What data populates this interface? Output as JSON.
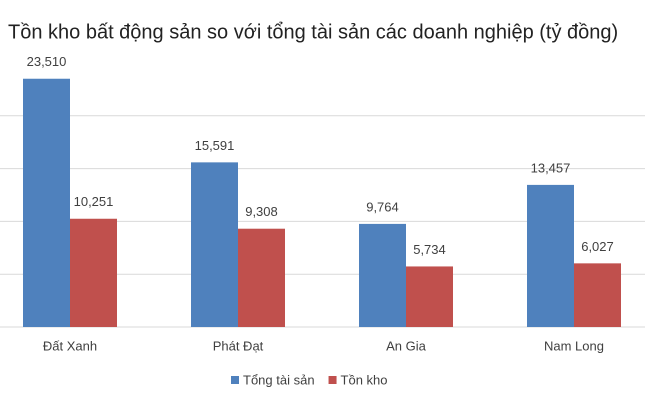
{
  "chart_data": {
    "type": "bar",
    "title": "Tồn kho bất động sản so với tổng tài sản các doanh nghiệp (tỷ đồng)",
    "categories": [
      "Đất Xanh",
      "Phát Đạt",
      "An Gia",
      "Nam Long"
    ],
    "series": [
      {
        "name": "Tổng tài sản",
        "color": "#4f81bd",
        "values": [
          23510,
          15591,
          9764,
          13457
        ],
        "value_labels": [
          "23,510",
          "15,591",
          "9,764",
          "13,457"
        ]
      },
      {
        "name": "Tồn kho",
        "color": "#c0504d",
        "values": [
          10251,
          9308,
          5734,
          6027
        ],
        "value_labels": [
          "10,251",
          "9,308",
          "5,734",
          "6,027"
        ]
      }
    ],
    "ylim": [
      0,
      25000
    ],
    "yticks": [
      0,
      5000,
      10000,
      15000,
      20000
    ],
    "grid": true,
    "legend": "bottom"
  }
}
